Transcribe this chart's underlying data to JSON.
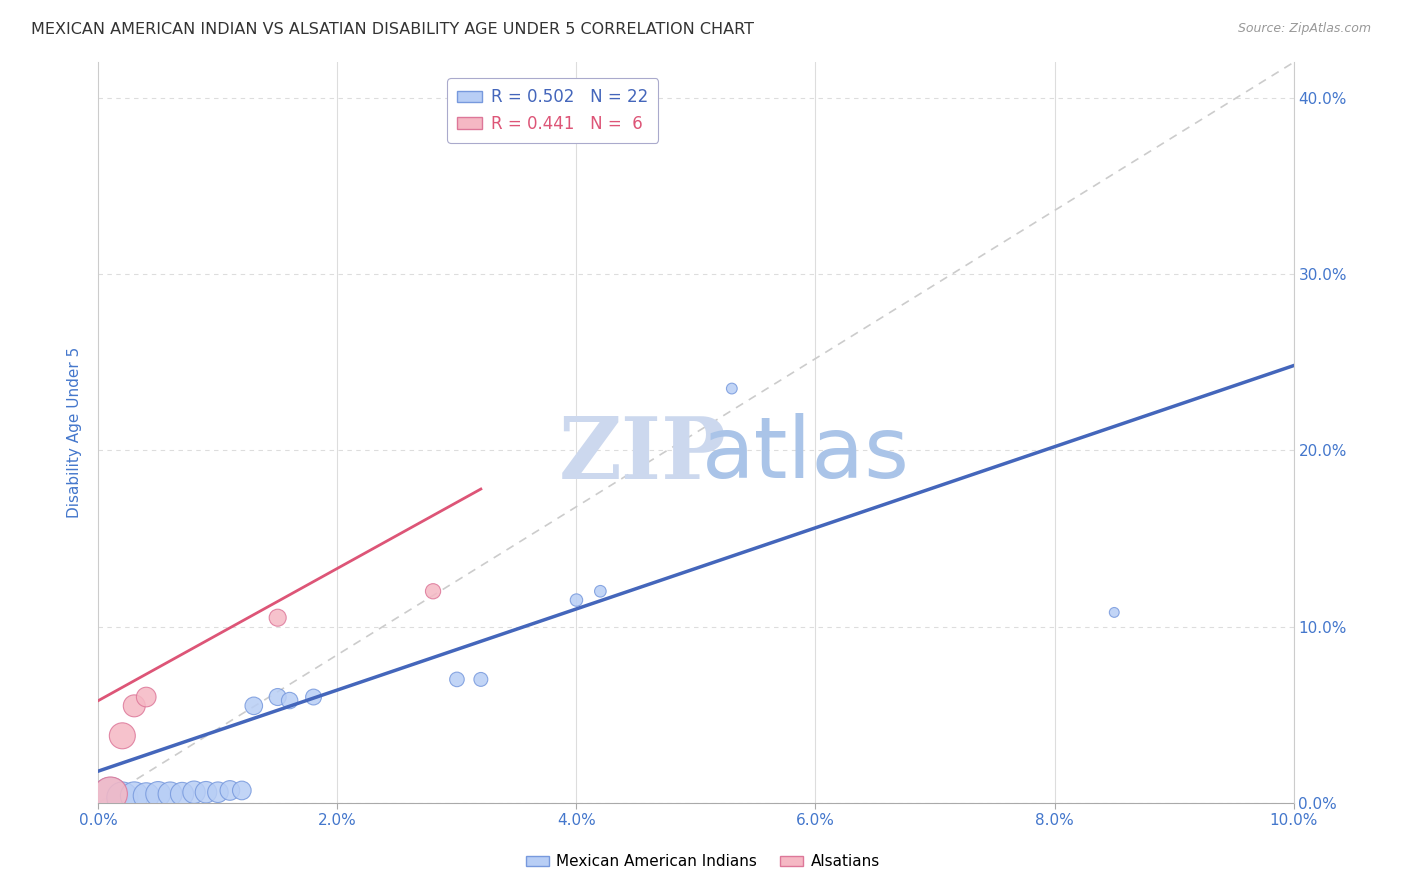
{
  "title": "MEXICAN AMERICAN INDIAN VS ALSATIAN DISABILITY AGE UNDER 5 CORRELATION CHART",
  "source": "Source: ZipAtlas.com",
  "ylabel": "Disability Age Under 5",
  "watermark_zip": "ZIP",
  "watermark_atlas": "atlas",
  "blue_x": [
    0.001,
    0.002,
    0.003,
    0.004,
    0.005,
    0.006,
    0.007,
    0.008,
    0.009,
    0.01,
    0.011,
    0.012,
    0.013,
    0.015,
    0.016,
    0.018,
    0.03,
    0.032,
    0.04,
    0.042,
    0.053,
    0.085
  ],
  "blue_y": [
    0.004,
    0.003,
    0.004,
    0.004,
    0.005,
    0.005,
    0.005,
    0.006,
    0.006,
    0.006,
    0.007,
    0.007,
    0.055,
    0.06,
    0.058,
    0.06,
    0.07,
    0.07,
    0.115,
    0.12,
    0.235,
    0.108
  ],
  "blue_sizes": [
    700,
    500,
    400,
    350,
    320,
    300,
    280,
    260,
    240,
    220,
    200,
    180,
    160,
    150,
    140,
    130,
    110,
    100,
    80,
    70,
    60,
    50
  ],
  "pink_x": [
    0.001,
    0.002,
    0.003,
    0.004,
    0.015,
    0.028
  ],
  "pink_y": [
    0.005,
    0.038,
    0.055,
    0.06,
    0.105,
    0.12
  ],
  "pink_sizes": [
    600,
    350,
    250,
    200,
    150,
    120
  ],
  "blue_line_x0": 0.0,
  "blue_line_y0": 0.018,
  "blue_line_x1": 0.1,
  "blue_line_y1": 0.248,
  "pink_line_x0": 0.0,
  "pink_line_y0": 0.058,
  "pink_line_x1": 0.032,
  "pink_line_y1": 0.178,
  "ref_line_x0": 0.0,
  "ref_line_y0": 0.0,
  "ref_line_x1": 0.1,
  "ref_line_y1": 0.42,
  "xlim": [
    0.0,
    0.1
  ],
  "ylim": [
    0.0,
    0.42
  ],
  "xticks": [
    0.0,
    0.02,
    0.04,
    0.06,
    0.08,
    0.1
  ],
  "yticks": [
    0.0,
    0.1,
    0.2,
    0.3,
    0.4
  ],
  "blue_face_color": "#b8cef5",
  "blue_edge_color": "#7799dd",
  "pink_face_color": "#f5b8c4",
  "pink_edge_color": "#dd7799",
  "blue_line_color": "#4466bb",
  "pink_line_color": "#dd5577",
  "ref_line_color": "#cccccc",
  "grid_color": "#dddddd",
  "axis_tick_color": "#4477cc",
  "watermark_color_zip": "#ccd8ee",
  "watermark_color_atlas": "#aac4e8",
  "title_color": "#333333",
  "source_color": "#999999",
  "ylabel_color": "#4477cc"
}
